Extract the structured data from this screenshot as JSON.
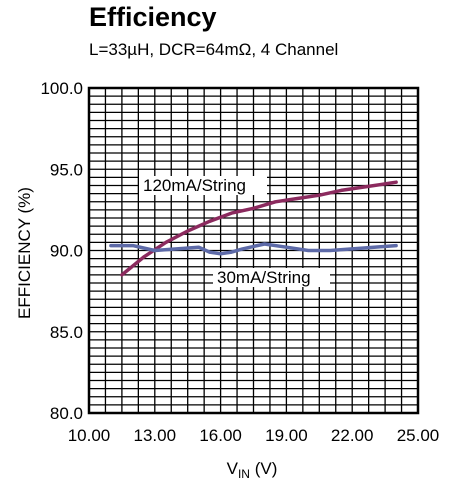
{
  "chart_data": {
    "type": "line",
    "title": "Efficiency",
    "subtitle": "L=33µH, DCR=64mΩ, 4 Channel",
    "xlabel_main": "V",
    "xlabel_sub": "IN",
    "xlabel_unit": " (V)",
    "ylabel": "EFFICIENCY (%)",
    "xlim": [
      10.0,
      25.0
    ],
    "ylim": [
      80.0,
      100.0
    ],
    "x_ticks": [
      "10.00",
      "13.00",
      "16.00",
      "19.00",
      "22.00",
      "25.00"
    ],
    "y_ticks": [
      "80.0",
      "85.0",
      "90.0",
      "95.0",
      "100.0"
    ],
    "grid": true,
    "series": [
      {
        "name": "120mA/String",
        "color": "#8b2a5e",
        "x": [
          11.5,
          12.5,
          13.5,
          14.5,
          15.5,
          16.5,
          17.5,
          18.5,
          19.5,
          20.5,
          21.5,
          22.5,
          23.5,
          24.0
        ],
        "y": [
          88.5,
          89.6,
          90.5,
          91.2,
          91.8,
          92.3,
          92.6,
          93.0,
          93.2,
          93.4,
          93.7,
          93.9,
          94.1,
          94.2
        ]
      },
      {
        "name": "30mA/String",
        "color": "#5d6aa8",
        "x": [
          11.0,
          12.0,
          13.0,
          14.0,
          15.0,
          15.5,
          16.0,
          16.5,
          17.0,
          18.0,
          19.0,
          20.0,
          21.0,
          22.0,
          23.0,
          24.0
        ],
        "y": [
          90.3,
          90.3,
          90.0,
          90.1,
          90.2,
          89.9,
          89.8,
          89.9,
          90.1,
          90.4,
          90.2,
          90.0,
          90.0,
          90.1,
          90.2,
          90.3
        ]
      }
    ]
  }
}
